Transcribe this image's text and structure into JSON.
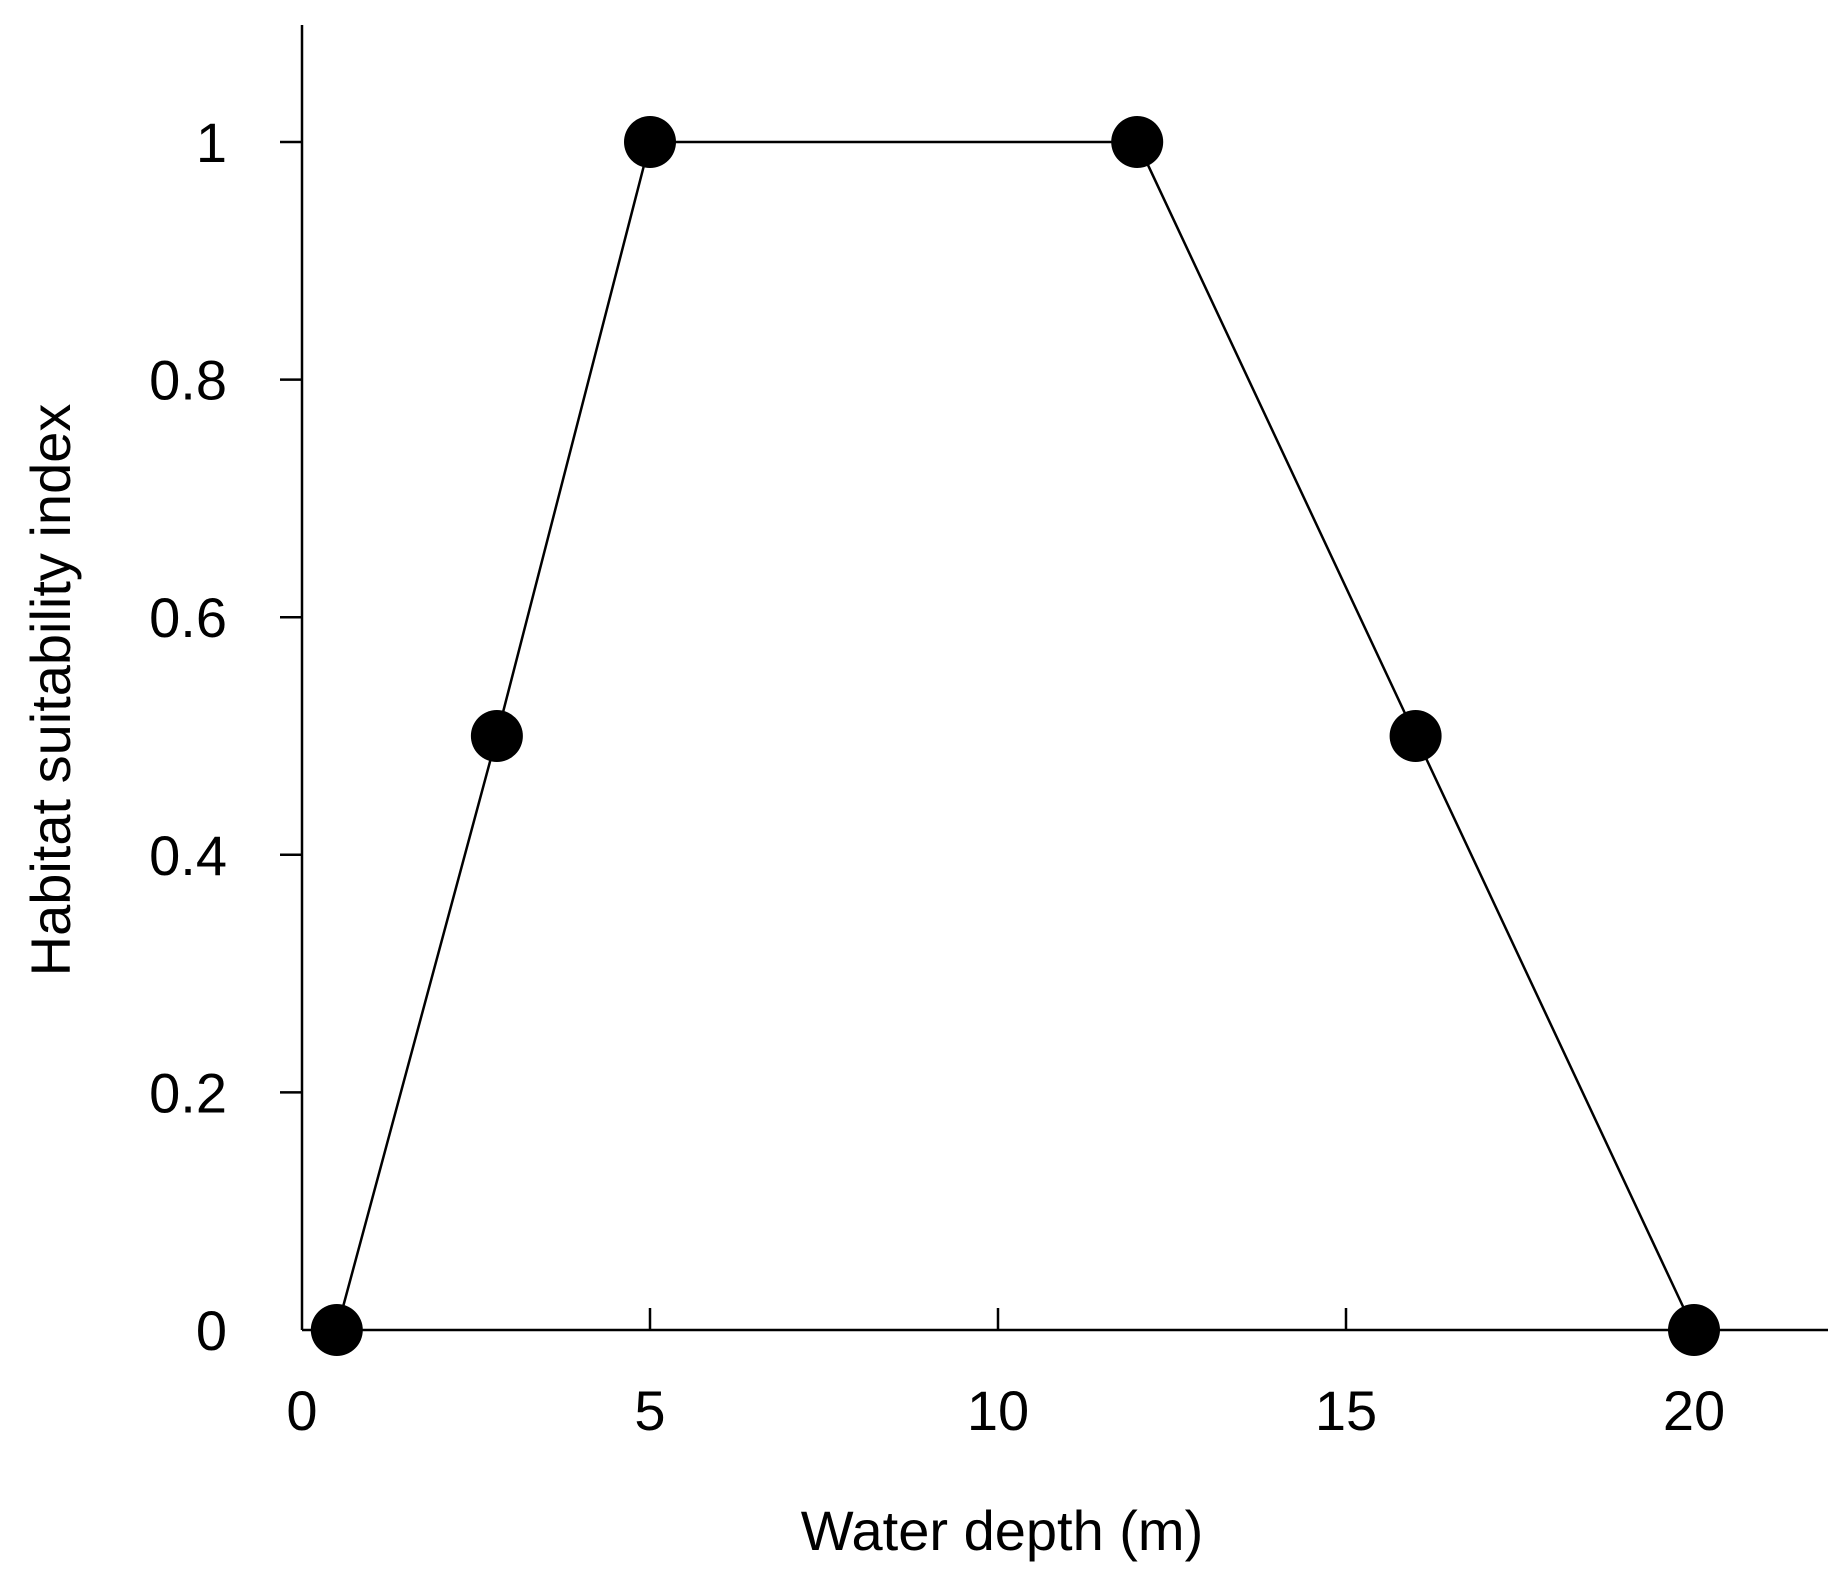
{
  "chart_data": {
    "type": "line",
    "title": "",
    "xlabel": "Water depth (m)",
    "ylabel": "Habitat suitability index",
    "xlim": [
      0,
      22
    ],
    "ylim": [
      0,
      1.1
    ],
    "x_ticks": [
      0,
      5,
      10,
      15,
      20
    ],
    "x_tick_labels": [
      "0",
      "5",
      "10",
      "15",
      "20"
    ],
    "y_ticks": [
      0,
      0.2,
      0.4,
      0.6,
      0.8,
      1
    ],
    "y_tick_labels": [
      "0",
      "0.2",
      "0.4",
      "0.6",
      "0.8",
      "1"
    ],
    "grid": false,
    "legend": "none",
    "line_color": "#000000",
    "marker_color": "#000000",
    "marker": "filled-circle",
    "series": [
      {
        "x": [
          0.5,
          2.8,
          5,
          12,
          16,
          20
        ],
        "y": [
          0,
          0.5,
          1,
          1,
          0.5,
          0
        ]
      }
    ]
  }
}
